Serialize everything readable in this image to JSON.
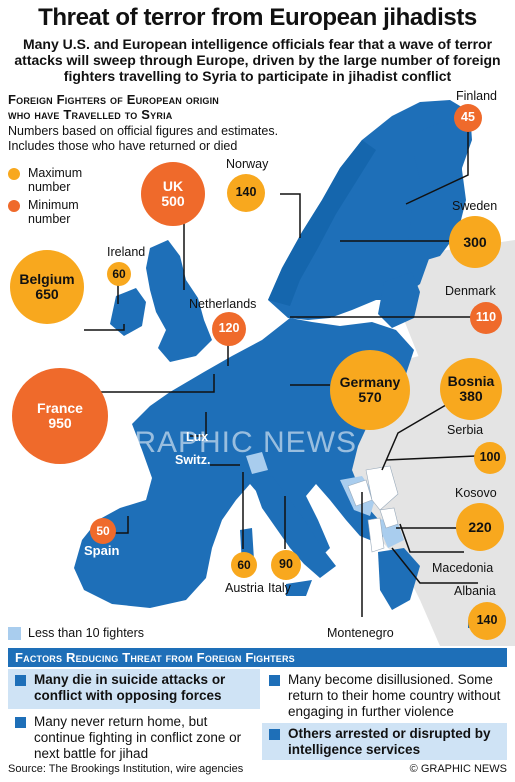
{
  "header": {
    "title": "Threat of terror from European jihadists",
    "subtitle": "Many U.S. and European intelligence officials fear that a wave of terror attacks will sweep through Europe, driven by the large number of foreign fighters travelling to Syria to participate in jihadist conflict"
  },
  "panel": {
    "title_line1": "Foreign Fighters of European origin",
    "title_line2": "who have Travelled to Syria",
    "note_line1": "Numbers based on official figures and estimates.",
    "note_line2": "Includes those who have returned or died"
  },
  "legend": {
    "maximum": "Maximum number",
    "minimum": "Minimum number",
    "less_than": "Less than 10 fighters",
    "colors": {
      "maximum": "#f8a81e",
      "minimum": "#ef6a2b",
      "less_than": "#a9cdee",
      "eu_blue": "#1e6fb8"
    }
  },
  "countries": {
    "finland": {
      "name": "Finland",
      "value": "45",
      "kind": "minimum"
    },
    "norway": {
      "name": "Norway",
      "value": "140",
      "kind": "maximum"
    },
    "uk": {
      "name": "UK",
      "value": "500",
      "kind": "minimum"
    },
    "sweden": {
      "name": "Sweden",
      "value": "300",
      "kind": "maximum"
    },
    "ireland": {
      "name": "Ireland",
      "value": "60",
      "kind": "maximum"
    },
    "belgium": {
      "name": "Belgium",
      "value": "650",
      "kind": "maximum"
    },
    "netherlands": {
      "name": "Netherlands",
      "value": "120",
      "kind": "minimum"
    },
    "denmark": {
      "name": "Denmark",
      "value": "110",
      "kind": "minimum"
    },
    "germany": {
      "name": "Germany",
      "value": "570",
      "kind": "maximum"
    },
    "bosnia": {
      "name": "Bosnia",
      "value": "380",
      "kind": "maximum"
    },
    "france": {
      "name": "France",
      "value": "950",
      "kind": "minimum"
    },
    "lux": {
      "name": "Lux"
    },
    "switz": {
      "name": "Switz."
    },
    "serbia": {
      "name": "Serbia",
      "value": "100",
      "kind": "maximum"
    },
    "kosovo": {
      "name": "Kosovo",
      "value": "220",
      "kind": "maximum"
    },
    "spain": {
      "name": "Spain",
      "value": "50",
      "kind": "minimum"
    },
    "macedonia": {
      "name": "Macedonia"
    },
    "austria": {
      "name": "Austria",
      "value": "60",
      "kind": "maximum"
    },
    "italy": {
      "name": "Italy",
      "value": "90",
      "kind": "maximum"
    },
    "albania": {
      "name": "Albania",
      "value": "140",
      "kind": "maximum"
    },
    "montenegro": {
      "name": "Montenegro"
    }
  },
  "factors": {
    "heading": "Factors Reducing Threat from Foreign Fighters",
    "items": [
      "Many die in suicide attacks or conflict with opposing forces",
      "Many become disillusioned. Some return to their home country without engaging in further violence",
      "Many never return home, but continue fighting in conflict zone or next battle for jihad",
      "Others arrested or disrupted by intelligence services"
    ]
  },
  "footer": {
    "source": "Source: The Brookings Institution, wire agencies",
    "credit": "© GRAPHIC NEWS"
  },
  "watermark": "GRAPHIC NEWS"
}
